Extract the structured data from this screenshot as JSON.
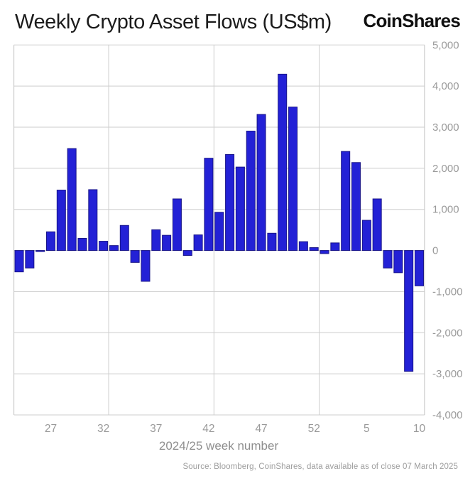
{
  "header": {
    "title": "Weekly Crypto Asset Flows (US$m)",
    "logo_text": "CoinShares"
  },
  "chart_data": {
    "type": "bar",
    "title": "Weekly Crypto Asset Flows (US$m)",
    "xlabel": "2024/25 week number",
    "ylabel": "",
    "ylim": [
      -4000,
      5000
    ],
    "grid": "horizontal gridlines every 1000; vertical gridlines after weeks 32, 42, 52; framed plot area",
    "legend_position": "none",
    "categories": [
      "24",
      "25",
      "26",
      "27",
      "28",
      "29",
      "30",
      "31",
      "32",
      "33",
      "34",
      "35",
      "36",
      "37",
      "38",
      "39",
      "40",
      "41",
      "42",
      "43",
      "44",
      "45",
      "46",
      "47",
      "48",
      "49",
      "50",
      "51",
      "52",
      "1",
      "2",
      "3",
      "4",
      "5",
      "6",
      "7",
      "8",
      "9",
      "10"
    ],
    "values": [
      -520,
      -425,
      -25,
      455,
      1470,
      2480,
      295,
      1480,
      225,
      120,
      610,
      -290,
      -750,
      505,
      370,
      1255,
      -120,
      380,
      2245,
      930,
      2335,
      2030,
      2905,
      3310,
      420,
      4290,
      3490,
      215,
      70,
      -75,
      185,
      2410,
      2140,
      735,
      1255,
      -425,
      -540,
      -2940,
      -860
    ],
    "yticks": [
      5000,
      4000,
      3000,
      2000,
      1000,
      0,
      -1000,
      -2000,
      -3000,
      -4000
    ],
    "ytick_labels": [
      "5,000",
      "4,000",
      "3,000",
      "2,000",
      "1,000",
      "0",
      "-1,000",
      "-2,000",
      "-3,000",
      "-4,000"
    ],
    "visible_xticks": [
      {
        "index": 3,
        "label": "27"
      },
      {
        "index": 8,
        "label": "32"
      },
      {
        "index": 13,
        "label": "37"
      },
      {
        "index": 18,
        "label": "42"
      },
      {
        "index": 23,
        "label": "47"
      },
      {
        "index": 28,
        "label": "52"
      },
      {
        "index": 33,
        "label": "5"
      },
      {
        "index": 38,
        "label": "10"
      }
    ],
    "vertical_gridline_boundaries": [
      9,
      19,
      29
    ],
    "bar_color": "#2321d6",
    "bar_edge_color": "#191589",
    "grid_color": "#cdcdcd",
    "frame_color": "#c2c2c2",
    "axis_text_color": "#9a9a9a",
    "axis_title_color": "#8e8e8e"
  },
  "footer": {
    "source": "Source: Bloomberg, CoinShares, data available as of close 07 March 2025"
  }
}
